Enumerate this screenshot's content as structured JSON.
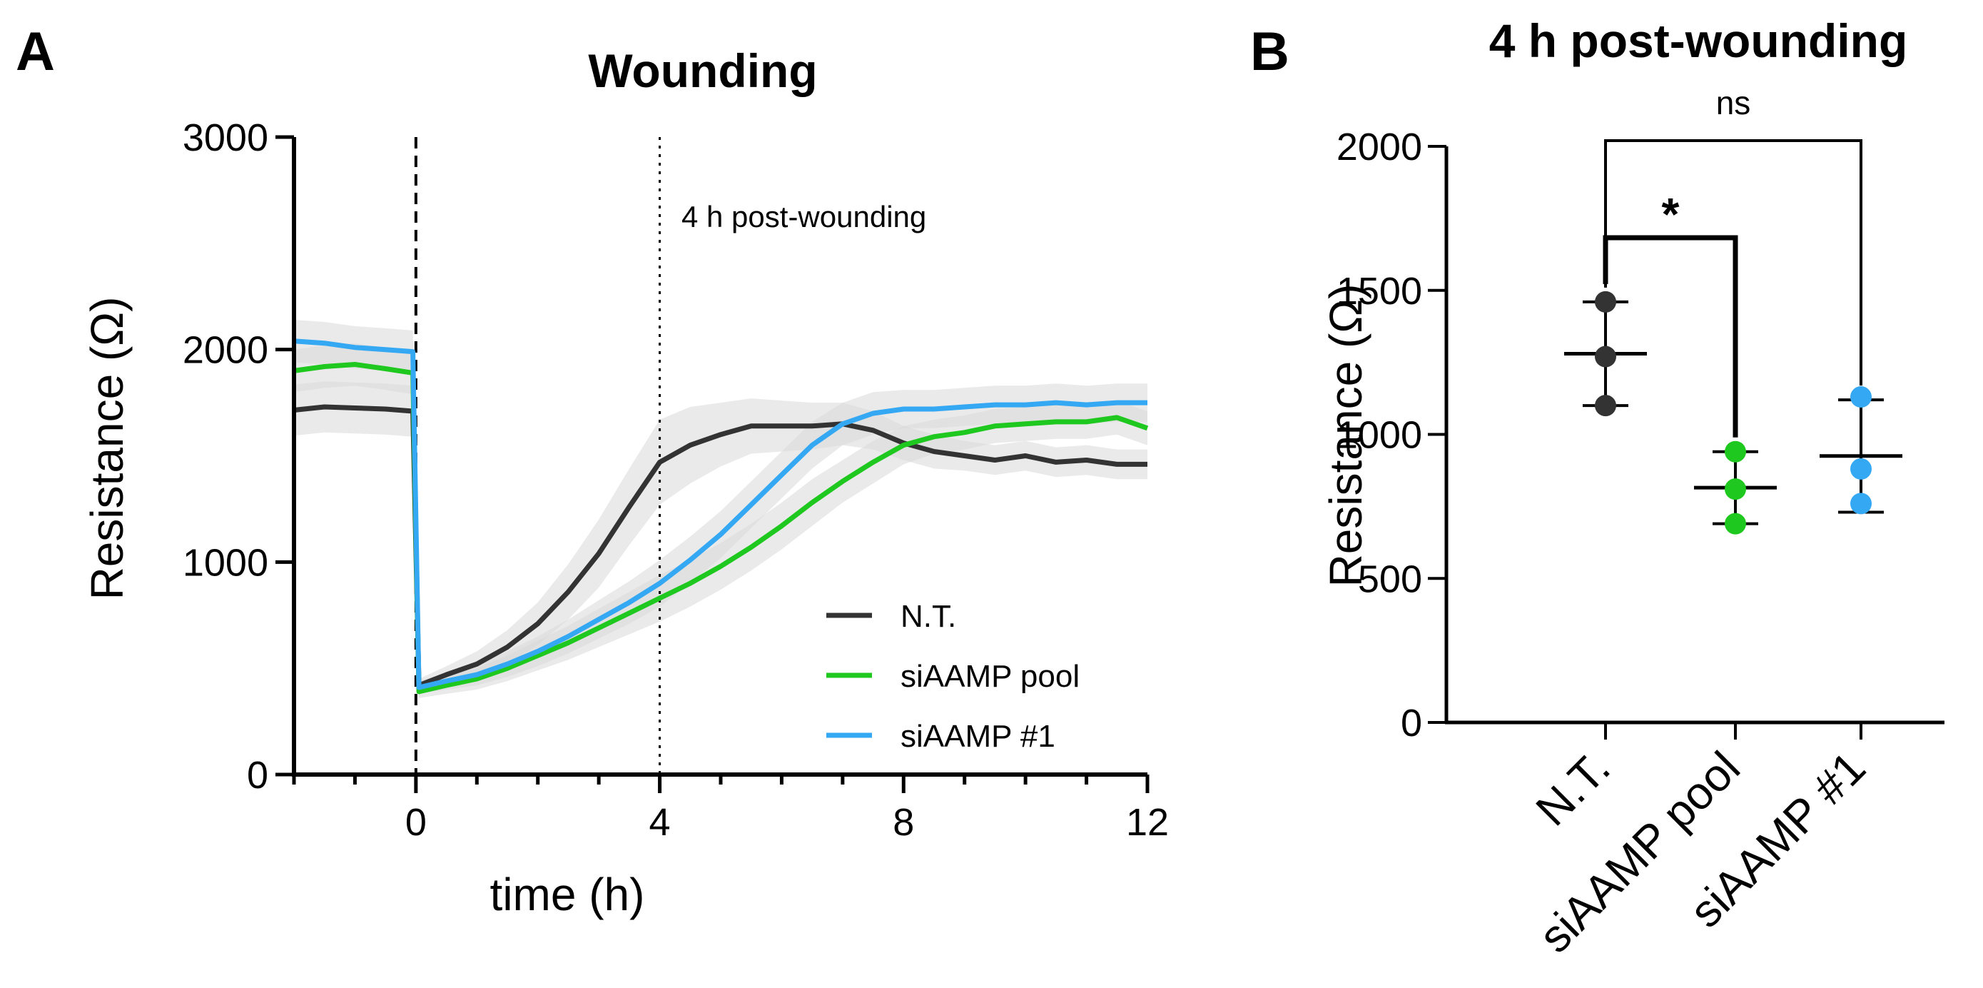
{
  "colors": {
    "nt": "#333333",
    "siaamp_pool": "#1ec81e",
    "siaamp_1": "#35a8f4",
    "sd_band": "#d9d9d9"
  },
  "panels": {
    "a": {
      "letter": "A"
    },
    "b": {
      "letter": "B"
    }
  },
  "chart_data": [
    {
      "type": "line",
      "title": "Wounding",
      "xlabel": "time (h)",
      "ylabel": "Resistance (Ω)",
      "xlim": [
        -2,
        12
      ],
      "ylim": [
        0,
        3000
      ],
      "xticks": [
        0,
        4,
        8,
        12
      ],
      "yticks": [
        0,
        1000,
        2000,
        3000
      ],
      "x_tick_labels": [
        "0",
        "4",
        "8",
        "12"
      ],
      "y_tick_labels": [
        "0",
        "1000",
        "2000",
        "3000"
      ],
      "grid": false,
      "legend_position": "bottom-right",
      "vlines": [
        {
          "x": 0,
          "style": "dashed"
        },
        {
          "x": 4,
          "style": "dotted",
          "label": "4 h post-wounding"
        }
      ],
      "series": [
        {
          "name": "N.T.",
          "color_key": "nt",
          "x": [
            -2,
            -1.5,
            -1,
            -0.5,
            -0.05,
            0.05,
            0.5,
            1,
            1.5,
            2,
            2.5,
            3,
            3.5,
            4,
            4.5,
            5,
            5.5,
            6,
            6.5,
            7,
            7.5,
            8,
            8.5,
            9,
            9.5,
            10,
            10.5,
            11,
            11.5,
            12
          ],
          "y": [
            1715,
            1730,
            1725,
            1720,
            1710,
            420,
            470,
            520,
            600,
            710,
            860,
            1040,
            1260,
            1470,
            1550,
            1600,
            1640,
            1640,
            1640,
            1650,
            1620,
            1560,
            1520,
            1500,
            1480,
            1500,
            1470,
            1480,
            1460,
            1460
          ],
          "sd": [
            120,
            120,
            120,
            120,
            120,
            30,
            40,
            60,
            80,
            100,
            130,
            160,
            180,
            200,
            180,
            150,
            130,
            120,
            110,
            100,
            90,
            80,
            80,
            70,
            70,
            70,
            70,
            70,
            70,
            70
          ]
        },
        {
          "name": "siAAMP pool",
          "color_key": "siaamp_pool",
          "x": [
            -2,
            -1.5,
            -1,
            -0.5,
            -0.05,
            0.05,
            0.5,
            1,
            1.5,
            2,
            2.5,
            3,
            3.5,
            4,
            4.5,
            5,
            5.5,
            6,
            6.5,
            7,
            7.5,
            8,
            8.5,
            9,
            9.5,
            10,
            10.5,
            11,
            11.5,
            12
          ],
          "y": [
            1900,
            1920,
            1930,
            1910,
            1890,
            390,
            420,
            450,
            500,
            560,
            620,
            690,
            760,
            830,
            900,
            980,
            1070,
            1170,
            1280,
            1380,
            1470,
            1550,
            1590,
            1610,
            1640,
            1650,
            1660,
            1660,
            1680,
            1630
          ],
          "sd": [
            100,
            100,
            100,
            100,
            100,
            30,
            40,
            50,
            60,
            70,
            80,
            90,
            100,
            110,
            110,
            110,
            110,
            110,
            110,
            100,
            100,
            90,
            80,
            80,
            80,
            80,
            80,
            80,
            80,
            80
          ]
        },
        {
          "name": "siAAMP #1",
          "color_key": "siaamp_1",
          "x": [
            -2,
            -1.5,
            -1,
            -0.5,
            -0.05,
            0.05,
            0.5,
            1,
            1.5,
            2,
            2.5,
            3,
            3.5,
            4,
            4.5,
            5,
            5.5,
            6,
            6.5,
            7,
            7.5,
            8,
            8.5,
            9,
            9.5,
            10,
            10.5,
            11,
            11.5,
            12
          ],
          "y": [
            2040,
            2030,
            2010,
            2000,
            1990,
            410,
            440,
            470,
            520,
            580,
            650,
            730,
            810,
            900,
            1010,
            1130,
            1270,
            1410,
            1550,
            1650,
            1700,
            1720,
            1720,
            1730,
            1740,
            1740,
            1750,
            1740,
            1750,
            1750
          ],
          "sd": [
            100,
            100,
            100,
            100,
            100,
            30,
            40,
            50,
            60,
            70,
            80,
            90,
            100,
            110,
            110,
            110,
            110,
            110,
            110,
            100,
            100,
            90,
            90,
            90,
            90,
            90,
            90,
            90,
            90,
            90
          ]
        }
      ]
    },
    {
      "type": "scatter",
      "title": "4 h post-wounding",
      "xlabel": "",
      "ylabel": "Resistance (Ω)",
      "ylim": [
        0,
        2000
      ],
      "yticks": [
        0,
        500,
        1000,
        1500,
        2000
      ],
      "y_tick_labels": [
        "0",
        "500",
        "1000",
        "1500",
        "2000"
      ],
      "grid": false,
      "categories": [
        "N.T.",
        "siAAMP pool",
        "siAAMP #1"
      ],
      "groups": [
        {
          "category": "N.T.",
          "color_key": "nt",
          "points": [
            1100,
            1270,
            1460
          ],
          "mean": 1280,
          "sd_low": 1100,
          "sd_high": 1460
        },
        {
          "category": "siAAMP pool",
          "color_key": "siaamp_pool",
          "points": [
            690,
            810,
            940
          ],
          "mean": 815,
          "sd_low": 690,
          "sd_high": 940
        },
        {
          "category": "siAAMP #1",
          "color_key": "siaamp_1",
          "points": [
            760,
            880,
            1130
          ],
          "mean": 925,
          "sd_low": 730,
          "sd_high": 1120
        }
      ],
      "significance": [
        {
          "from": "N.T.",
          "to": "siAAMP pool",
          "label": "*"
        },
        {
          "from": "N.T.",
          "to": "siAAMP #1",
          "label": "ns"
        }
      ]
    }
  ]
}
